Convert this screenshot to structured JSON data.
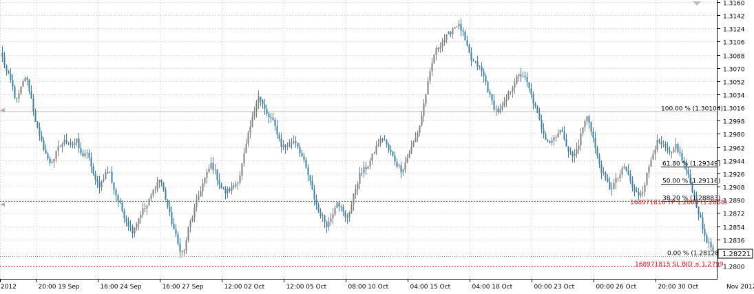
{
  "colors": {
    "bull": "#7f7f7f",
    "bear": "#3b7ea6",
    "grid": "#dcdcdc",
    "axis": "#000000",
    "fib_line": "#9a9a9a",
    "order_line": "#e03030",
    "order_text": "#d01818"
  },
  "chart_data": {
    "type": "candlestick",
    "ylim": [
      1.2792,
      1.316
    ],
    "y_ticks": [
      "1.3160",
      "1.3142",
      "1.3124",
      "1.3106",
      "1.3088",
      "1.3070",
      "1.3052",
      "1.3034",
      "1.3016",
      "1.2998",
      "1.2980",
      "1.2962",
      "1.2944",
      "1.2926",
      "1.2908",
      "1.2890",
      "1.2872",
      "1.2854",
      "1.2836",
      "1.2818",
      "1.2800"
    ],
    "x_labels": [
      "2012",
      "20:00 19 Sep",
      "16:00 24 Sep",
      "16:00 27 Sep",
      "12:00 02 Oct",
      "12:00 05 Oct",
      "08:00 10 Oct",
      "04:00 15 Oct",
      "04:00 18 Oct",
      "00:00 23 Oct",
      "00:00 26 Oct",
      "20:00 30 Oct",
      "Nov 2012"
    ],
    "current_price": "1.28221",
    "fibonacci": [
      {
        "label": "100.00 % (1.30104)",
        "value": 1.30104
      },
      {
        "label": "61.80 % (1.29349)",
        "value": 1.29349
      },
      {
        "label": "50.00 % (1.29116)",
        "value": 1.29116
      },
      {
        "label": "38.20 % (1.28883)",
        "value": 1.28883
      },
      {
        "label": "0.00 % (1.28128)",
        "value": 1.28128
      }
    ],
    "orders": [
      {
        "label": "168971816 TP 1.2888 (1.2888)",
        "value": 1.2888
      },
      {
        "label": "168971815 SL BID ≤ 1.2799",
        "value": 1.2799
      }
    ],
    "anchor_close": [
      1.3084,
      1.3063,
      1.3049,
      1.3023,
      1.3042,
      1.306,
      1.3035,
      1.3002,
      1.2975,
      1.296,
      1.294,
      1.2945,
      1.296,
      1.2968,
      1.2972,
      1.2965,
      1.297,
      1.295,
      1.2955,
      1.294,
      1.2915,
      1.291,
      1.2925,
      1.293,
      1.2905,
      1.2888,
      1.2872,
      1.2858,
      1.2848,
      1.286,
      1.2875,
      1.288,
      1.2895,
      1.291,
      1.292,
      1.2895,
      1.287,
      1.2848,
      1.2825,
      1.2815,
      1.285,
      1.287,
      1.289,
      1.291,
      1.2925,
      1.294,
      1.2925,
      1.2908,
      1.29,
      1.2905,
      1.291,
      1.292,
      1.295,
      1.298,
      1.3005,
      1.3035,
      1.302,
      1.3005,
      1.3,
      1.2985,
      1.2965,
      1.2962,
      1.2968,
      1.2972,
      1.2958,
      1.294,
      1.292,
      1.2895,
      1.2876,
      1.2865,
      1.2855,
      1.287,
      1.289,
      1.2878,
      1.2862,
      1.288,
      1.2905,
      1.2925,
      1.2932,
      1.294,
      1.2955,
      1.2968,
      1.2975,
      1.296,
      1.295,
      1.2938,
      1.293,
      1.2945,
      1.296,
      1.2975,
      1.2995,
      1.303,
      1.306,
      1.309,
      1.31,
      1.3108,
      1.3115,
      1.3125,
      1.313,
      1.312,
      1.3098,
      1.308,
      1.3075,
      1.3068,
      1.3052,
      1.303,
      1.3015,
      1.301,
      1.302,
      1.3035,
      1.3048,
      1.3058,
      1.3062,
      1.3048,
      1.303,
      1.301,
      1.299,
      1.2975,
      1.2968,
      1.2978,
      1.2985,
      1.2975,
      1.2955,
      1.2948,
      1.2965,
      1.299,
      1.3005,
      1.298,
      1.295,
      1.293,
      1.2915,
      1.2905,
      1.2915,
      1.2925,
      1.2935,
      1.292,
      1.29,
      1.2898,
      1.2905,
      1.293,
      1.2955,
      1.2968,
      1.2965,
      1.2958,
      1.295,
      1.2965,
      1.295,
      1.2935,
      1.2915,
      1.2895,
      1.287,
      1.2845,
      1.283,
      1.2822
    ]
  }
}
